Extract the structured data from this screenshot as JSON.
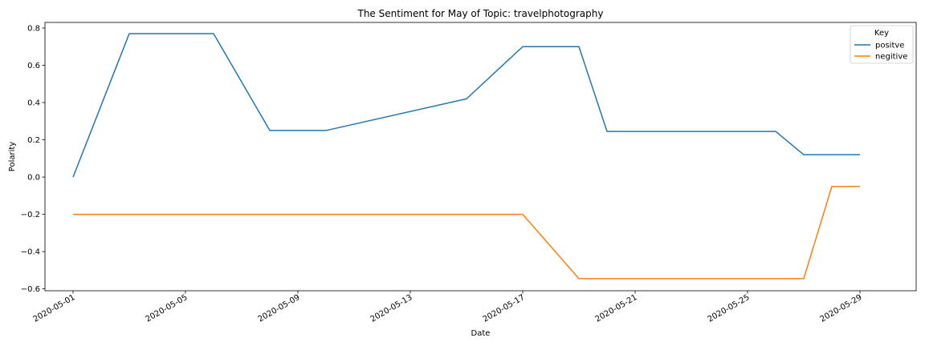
{
  "chart_data": {
    "type": "line",
    "title": "The Sentiment for May of Topic: travelphotography",
    "xlabel": "Date",
    "ylabel": "Polarity",
    "xlim": [
      "2020-04-30",
      "2020-05-31"
    ],
    "ylim": [
      -0.61,
      0.83
    ],
    "x_ticks": [
      "2020-05-01",
      "2020-05-05",
      "2020-05-09",
      "2020-05-13",
      "2020-05-17",
      "2020-05-21",
      "2020-05-25",
      "2020-05-29"
    ],
    "y_ticks": [
      0.8,
      0.6,
      0.4,
      0.2,
      0.0,
      -0.2,
      -0.4,
      -0.6
    ],
    "y_tick_labels": [
      "0.8",
      "0.6",
      "0.4",
      "0.2",
      "0.0",
      "−0.2",
      "−0.4",
      "−0.6"
    ],
    "grid": false,
    "legend": {
      "title": "Key",
      "placement": "top-right"
    },
    "series": [
      {
        "name": "positve",
        "color": "#1f77b4",
        "x": [
          "2020-05-01",
          "2020-05-03",
          "2020-05-06",
          "2020-05-08",
          "2020-05-10",
          "2020-05-15",
          "2020-05-17",
          "2020-05-19",
          "2020-05-20",
          "2020-05-26",
          "2020-05-27",
          "2020-05-29"
        ],
        "y": [
          0.0,
          0.77,
          0.77,
          0.25,
          0.25,
          0.42,
          0.7,
          0.7,
          0.245,
          0.245,
          0.12,
          0.12
        ]
      },
      {
        "name": "negitive",
        "color": "#ff7f0e",
        "x": [
          "2020-05-01",
          "2020-05-17",
          "2020-05-19",
          "2020-05-27",
          "2020-05-28",
          "2020-05-29"
        ],
        "y": [
          -0.2,
          -0.2,
          -0.545,
          -0.545,
          -0.05,
          -0.05
        ]
      }
    ]
  }
}
